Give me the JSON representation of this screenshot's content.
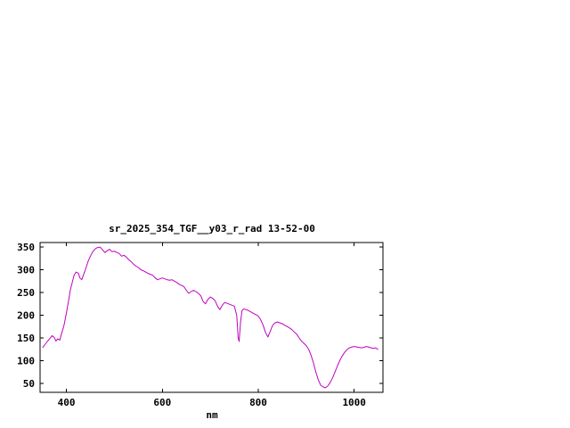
{
  "page": {
    "background_color": "#ffffff"
  },
  "chart_data": {
    "type": "line",
    "title": "sr_2025_354_TGF__y03_r_rad 13-52-00",
    "xlabel": "nm",
    "ylabel": "",
    "xlim": [
      345,
      1060
    ],
    "ylim": [
      30,
      360
    ],
    "x_ticks": [
      400,
      600,
      800,
      1000
    ],
    "y_ticks": [
      50,
      100,
      150,
      200,
      250,
      300,
      350
    ],
    "grid": false,
    "legend": "none",
    "line_color": "#c000c0",
    "frame_color": "#000000",
    "series": [
      {
        "name": "sr_2025_354_TGF__y03_r_rad",
        "points": [
          [
            350,
            128
          ],
          [
            355,
            135
          ],
          [
            360,
            142
          ],
          [
            365,
            148
          ],
          [
            370,
            155
          ],
          [
            375,
            150
          ],
          [
            378,
            143
          ],
          [
            382,
            148
          ],
          [
            386,
            145
          ],
          [
            390,
            160
          ],
          [
            395,
            178
          ],
          [
            400,
            205
          ],
          [
            405,
            235
          ],
          [
            408,
            255
          ],
          [
            412,
            272
          ],
          [
            416,
            288
          ],
          [
            420,
            295
          ],
          [
            425,
            292
          ],
          [
            428,
            282
          ],
          [
            432,
            278
          ],
          [
            436,
            290
          ],
          [
            440,
            302
          ],
          [
            445,
            318
          ],
          [
            450,
            330
          ],
          [
            455,
            340
          ],
          [
            460,
            346
          ],
          [
            465,
            349
          ],
          [
            470,
            350
          ],
          [
            475,
            344
          ],
          [
            480,
            338
          ],
          [
            485,
            342
          ],
          [
            490,
            345
          ],
          [
            495,
            340
          ],
          [
            500,
            341
          ],
          [
            505,
            338
          ],
          [
            510,
            336
          ],
          [
            515,
            330
          ],
          [
            520,
            332
          ],
          [
            525,
            328
          ],
          [
            530,
            322
          ],
          [
            535,
            318
          ],
          [
            540,
            312
          ],
          [
            545,
            308
          ],
          [
            550,
            305
          ],
          [
            555,
            300
          ],
          [
            560,
            298
          ],
          [
            565,
            295
          ],
          [
            570,
            292
          ],
          [
            575,
            290
          ],
          [
            580,
            288
          ],
          [
            585,
            282
          ],
          [
            590,
            278
          ],
          [
            595,
            280
          ],
          [
            600,
            282
          ],
          [
            605,
            280
          ],
          [
            610,
            278
          ],
          [
            615,
            277
          ],
          [
            620,
            278
          ],
          [
            625,
            275
          ],
          [
            630,
            272
          ],
          [
            635,
            268
          ],
          [
            640,
            266
          ],
          [
            645,
            263
          ],
          [
            650,
            255
          ],
          [
            655,
            248
          ],
          [
            660,
            252
          ],
          [
            665,
            255
          ],
          [
            670,
            252
          ],
          [
            675,
            248
          ],
          [
            680,
            243
          ],
          [
            685,
            230
          ],
          [
            690,
            225
          ],
          [
            695,
            235
          ],
          [
            700,
            240
          ],
          [
            705,
            237
          ],
          [
            710,
            232
          ],
          [
            715,
            220
          ],
          [
            720,
            212
          ],
          [
            725,
            222
          ],
          [
            730,
            228
          ],
          [
            735,
            226
          ],
          [
            740,
            224
          ],
          [
            745,
            222
          ],
          [
            750,
            220
          ],
          [
            755,
            200
          ],
          [
            758,
            150
          ],
          [
            760,
            142
          ],
          [
            763,
            185
          ],
          [
            766,
            210
          ],
          [
            770,
            214
          ],
          [
            775,
            212
          ],
          [
            780,
            210
          ],
          [
            785,
            207
          ],
          [
            790,
            204
          ],
          [
            795,
            201
          ],
          [
            800,
            198
          ],
          [
            805,
            190
          ],
          [
            810,
            178
          ],
          [
            815,
            162
          ],
          [
            820,
            152
          ],
          [
            825,
            165
          ],
          [
            830,
            178
          ],
          [
            835,
            183
          ],
          [
            840,
            185
          ],
          [
            845,
            183
          ],
          [
            850,
            181
          ],
          [
            855,
            178
          ],
          [
            860,
            175
          ],
          [
            865,
            172
          ],
          [
            870,
            168
          ],
          [
            875,
            163
          ],
          [
            880,
            158
          ],
          [
            885,
            150
          ],
          [
            890,
            143
          ],
          [
            895,
            138
          ],
          [
            900,
            133
          ],
          [
            905,
            125
          ],
          [
            910,
            112
          ],
          [
            915,
            95
          ],
          [
            920,
            75
          ],
          [
            925,
            58
          ],
          [
            930,
            46
          ],
          [
            935,
            42
          ],
          [
            940,
            40
          ],
          [
            945,
            44
          ],
          [
            950,
            52
          ],
          [
            955,
            62
          ],
          [
            960,
            75
          ],
          [
            965,
            88
          ],
          [
            970,
            100
          ],
          [
            975,
            110
          ],
          [
            980,
            118
          ],
          [
            985,
            124
          ],
          [
            990,
            128
          ],
          [
            995,
            130
          ],
          [
            1000,
            131
          ],
          [
            1005,
            130
          ],
          [
            1010,
            129
          ],
          [
            1015,
            128
          ],
          [
            1020,
            129
          ],
          [
            1025,
            131
          ],
          [
            1030,
            130
          ],
          [
            1035,
            128
          ],
          [
            1040,
            127
          ],
          [
            1045,
            128
          ],
          [
            1050,
            124
          ]
        ]
      }
    ]
  }
}
